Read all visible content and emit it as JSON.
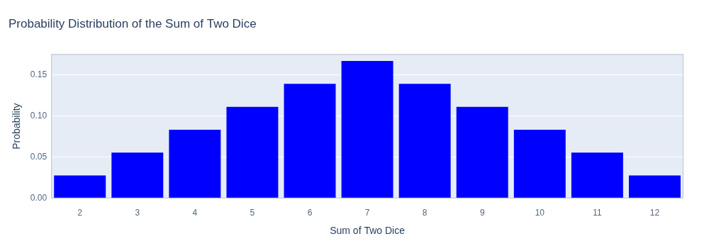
{
  "chart_data": {
    "type": "bar",
    "title": "Probability Distribution of the Sum of Two Dice",
    "x_label": "Sum of Two Dice",
    "y_label": "Probability",
    "categories": [
      2,
      3,
      4,
      5,
      6,
      7,
      8,
      9,
      10,
      11,
      12
    ],
    "values": [
      0.0278,
      0.0556,
      0.0833,
      0.1111,
      0.1389,
      0.1667,
      0.1389,
      0.1111,
      0.0833,
      0.0556,
      0.0278
    ],
    "color": "#0000ff",
    "ylim": [
      0,
      0.175
    ],
    "yticks": [
      {
        "value": 0,
        "label": "0.00"
      },
      {
        "value": 0.05,
        "label": "0.05"
      },
      {
        "value": 0.1,
        "label": "0.10"
      },
      {
        "value": 0.15,
        "label": "0.15"
      }
    ],
    "grid": true
  }
}
